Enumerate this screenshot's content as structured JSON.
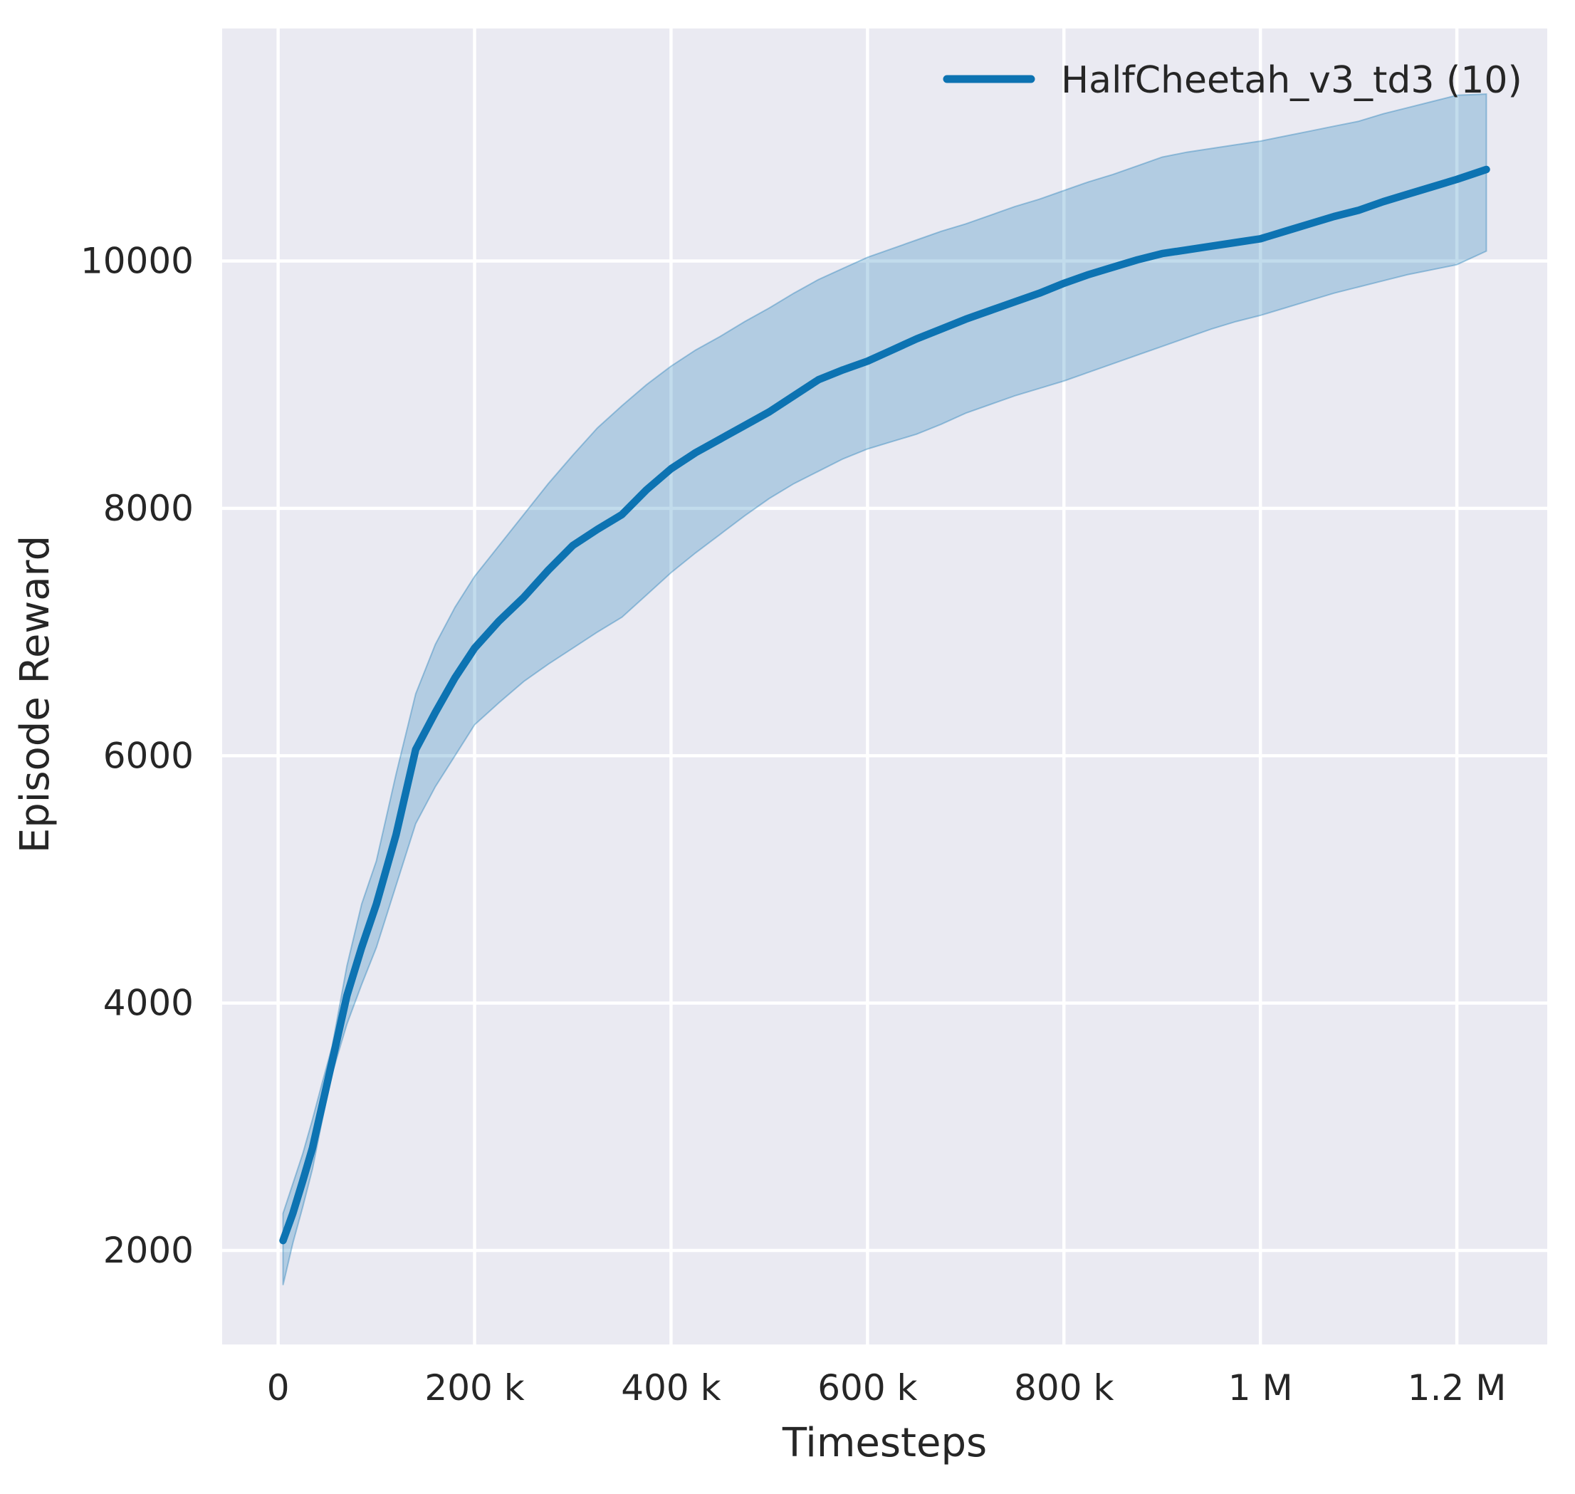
{
  "chart_data": {
    "type": "line",
    "title": "",
    "xlabel": "Timesteps",
    "ylabel": "Episode Reward",
    "xlim": [
      -57000,
      1292000
    ],
    "ylim": [
      1240,
      11880
    ],
    "grid": true,
    "legend_position": "upper right",
    "x_ticks": [
      {
        "value": 0,
        "label": "0"
      },
      {
        "value": 200000,
        "label": "200 k"
      },
      {
        "value": 400000,
        "label": "400 k"
      },
      {
        "value": 600000,
        "label": "600 k"
      },
      {
        "value": 800000,
        "label": "800 k"
      },
      {
        "value": 1000000,
        "label": "1 M"
      },
      {
        "value": 1200000,
        "label": "1.2 M"
      }
    ],
    "y_ticks": [
      {
        "value": 2000,
        "label": "2000"
      },
      {
        "value": 4000,
        "label": "4000"
      },
      {
        "value": 6000,
        "label": "6000"
      },
      {
        "value": 8000,
        "label": "8000"
      },
      {
        "value": 10000,
        "label": "10000"
      }
    ],
    "series": [
      {
        "name": "HalfCheetah_v3_td3 (10)",
        "color": "#0d73b2",
        "band_opacity": 0.25,
        "x": [
          5000,
          15000,
          25000,
          35000,
          45000,
          55000,
          70000,
          85000,
          100000,
          120000,
          140000,
          160000,
          180000,
          200000,
          225000,
          250000,
          275000,
          300000,
          325000,
          350000,
          375000,
          400000,
          425000,
          450000,
          475000,
          500000,
          525000,
          550000,
          575000,
          600000,
          625000,
          650000,
          675000,
          700000,
          725000,
          750000,
          775000,
          800000,
          825000,
          850000,
          875000,
          900000,
          925000,
          950000,
          975000,
          1000000,
          1025000,
          1050000,
          1075000,
          1100000,
          1125000,
          1150000,
          1175000,
          1200000,
          1230000
        ],
        "mean": [
          2080,
          2300,
          2560,
          2830,
          3180,
          3530,
          4060,
          4450,
          4800,
          5360,
          6050,
          6350,
          6630,
          6870,
          7090,
          7280,
          7500,
          7700,
          7830,
          7950,
          8150,
          8320,
          8450,
          8560,
          8670,
          8780,
          8910,
          9040,
          9120,
          9190,
          9280,
          9370,
          9450,
          9530,
          9600,
          9670,
          9740,
          9820,
          9890,
          9950,
          10010,
          10060,
          10090,
          10120,
          10150,
          10180,
          10240,
          10300,
          10360,
          10410,
          10480,
          10540,
          10600,
          10660,
          10740
        ],
        "lower": [
          1720,
          2060,
          2350,
          2660,
          3060,
          3430,
          3830,
          4150,
          4450,
          4950,
          5450,
          5750,
          6000,
          6250,
          6430,
          6600,
          6740,
          6870,
          7000,
          7120,
          7300,
          7480,
          7640,
          7790,
          7940,
          8080,
          8200,
          8300,
          8400,
          8480,
          8540,
          8600,
          8680,
          8770,
          8840,
          8910,
          8970,
          9030,
          9100,
          9170,
          9240,
          9310,
          9380,
          9450,
          9510,
          9560,
          9620,
          9680,
          9740,
          9790,
          9840,
          9890,
          9930,
          9970,
          10080
        ],
        "upper": [
          2300,
          2540,
          2780,
          3060,
          3360,
          3650,
          4300,
          4800,
          5150,
          5850,
          6500,
          6900,
          7200,
          7450,
          7700,
          7950,
          8200,
          8430,
          8650,
          8830,
          9000,
          9150,
          9280,
          9390,
          9510,
          9620,
          9740,
          9850,
          9940,
          10030,
          10100,
          10170,
          10240,
          10300,
          10370,
          10440,
          10500,
          10570,
          10640,
          10700,
          10770,
          10840,
          10880,
          10910,
          10940,
          10970,
          11010,
          11050,
          11090,
          11130,
          11190,
          11240,
          11290,
          11340,
          11350
        ]
      }
    ]
  },
  "style": {
    "figure_background": "#ffffff",
    "axes_background": "#eaeaf2",
    "grid_color": "#ffffff",
    "text_color": "#262626",
    "accent": "#0d73b2"
  }
}
